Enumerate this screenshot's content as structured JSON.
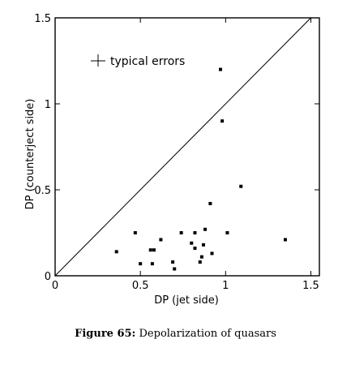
{
  "caption": {
    "label": "Figure 65:",
    "text": "Depolarization of quasars"
  },
  "chart_data": {
    "type": "scatter",
    "xlabel": "DP (jet side)",
    "ylabel": "DP (counterject side)",
    "xlim": [
      0,
      1.55
    ],
    "ylim": [
      0,
      1.5
    ],
    "x_ticks": [
      "0",
      "0.5",
      "1",
      "1.5"
    ],
    "y_ticks": [
      "0",
      "0.5",
      "1",
      "1.5"
    ],
    "x_tick_values": [
      0,
      0.5,
      1,
      1.5
    ],
    "y_tick_values": [
      0,
      0.5,
      1,
      1.5
    ],
    "grid": false,
    "reference_line": "y = x",
    "legend": {
      "text": "typical errors",
      "placement": "top-left"
    },
    "points": [
      {
        "x": 0.97,
        "y": 1.2
      },
      {
        "x": 0.98,
        "y": 0.9
      },
      {
        "x": 1.09,
        "y": 0.52
      },
      {
        "x": 0.91,
        "y": 0.42
      },
      {
        "x": 0.47,
        "y": 0.25
      },
      {
        "x": 0.74,
        "y": 0.25
      },
      {
        "x": 0.82,
        "y": 0.25
      },
      {
        "x": 0.88,
        "y": 0.27
      },
      {
        "x": 1.01,
        "y": 0.25
      },
      {
        "x": 1.35,
        "y": 0.21
      },
      {
        "x": 0.62,
        "y": 0.21
      },
      {
        "x": 0.8,
        "y": 0.19
      },
      {
        "x": 0.87,
        "y": 0.18
      },
      {
        "x": 0.82,
        "y": 0.16
      },
      {
        "x": 0.58,
        "y": 0.15
      },
      {
        "x": 0.56,
        "y": 0.15
      },
      {
        "x": 0.36,
        "y": 0.14
      },
      {
        "x": 0.92,
        "y": 0.13
      },
      {
        "x": 0.86,
        "y": 0.11
      },
      {
        "x": 0.85,
        "y": 0.08
      },
      {
        "x": 0.69,
        "y": 0.08
      },
      {
        "x": 0.5,
        "y": 0.07
      },
      {
        "x": 0.57,
        "y": 0.07
      },
      {
        "x": 0.7,
        "y": 0.04
      }
    ]
  }
}
